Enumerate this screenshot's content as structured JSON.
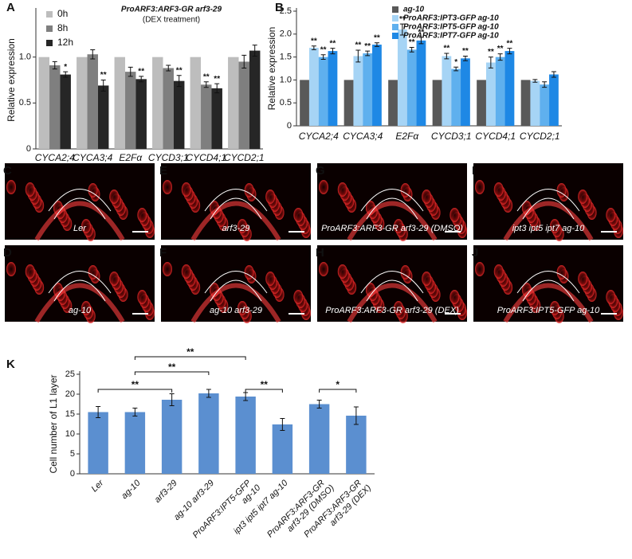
{
  "chart_data": [
    {
      "type": "bar",
      "label": "A",
      "title": "ProARF3:ARF3-GR arf3-29",
      "subtitle": "(DEX treatment)",
      "y_label": "Relative expression",
      "categories": [
        "CYCA2;4",
        "CYCA3;4",
        "E2Fα",
        "CYCD3;1",
        "CYCD4;1",
        "CYCD2;1"
      ],
      "ylim": [
        0,
        1.5
      ],
      "yticks": [
        0,
        0.5,
        {
          "value": 1,
          "label": "1.0"
        }
      ],
      "series": [
        {
          "name": "0h",
          "color": "#bdbdbd",
          "values": [
            1,
            1,
            1,
            1,
            1,
            1
          ]
        },
        {
          "name": "8h",
          "color": "#7f7f7f",
          "values": [
            0.91,
            1.03,
            0.84,
            0.88,
            0.7,
            0.95
          ],
          "errors": [
            0.04,
            0.05,
            0.05,
            0.03,
            0.03,
            0.07
          ],
          "significance": [
            null,
            null,
            null,
            null,
            "**",
            null
          ]
        },
        {
          "name": "12h",
          "color": "#262626",
          "values": [
            0.81,
            0.69,
            0.76,
            0.74,
            0.66,
            1.07
          ],
          "errors": [
            0.03,
            0.06,
            0.03,
            0.06,
            0.05,
            0.06
          ],
          "significance": [
            "*",
            "**",
            "**",
            "**",
            "**",
            null
          ]
        }
      ]
    },
    {
      "type": "bar",
      "label": "B",
      "y_label": "Relative expression",
      "categories": [
        "CYCA2;4",
        "CYCA3;4",
        "E2Fα",
        "CYCD3;1",
        "CYCD4;1",
        "CYCD2;1"
      ],
      "ylim": [
        0,
        2.5
      ],
      "yticks": [
        0,
        0.5,
        {
          "value": 1,
          "label": "1.0"
        },
        1.5,
        {
          "value": 2,
          "label": "2.0"
        },
        2.5
      ],
      "series": [
        {
          "name": "ag-10",
          "color": "#595959",
          "values": [
            1,
            1,
            1,
            1,
            1,
            1
          ]
        },
        {
          "name": "ProARF3:IPT3-GFP ag-10",
          "color": "#a6d4f5",
          "values": [
            1.7,
            1.52,
            2.1,
            1.52,
            1.38,
            0.98
          ],
          "errors": [
            0.04,
            0.13,
            0.12,
            0.06,
            0.12,
            0.03
          ],
          "significance": [
            "**",
            "**",
            "**",
            "**",
            "**",
            null
          ]
        },
        {
          "name": "ProARF3:IPT5-GFP ag-10",
          "color": "#5fb0ee",
          "values": [
            1.5,
            1.58,
            1.66,
            1.24,
            1.5,
            0.9
          ],
          "errors": [
            0.05,
            0.05,
            0.05,
            0.04,
            0.07,
            0.06
          ],
          "significance": [
            "**",
            "**",
            "**",
            "*",
            "**",
            null
          ]
        },
        {
          "name": "ProARF3:IPT7-GFP ag-10",
          "color": "#1e88e5",
          "values": [
            1.63,
            1.77,
            1.86,
            1.47,
            1.63,
            1.12
          ],
          "errors": [
            0.06,
            0.04,
            0.07,
            0.05,
            0.06,
            0.06
          ],
          "significance": [
            "**",
            "**",
            "**",
            "**",
            "**",
            null
          ]
        }
      ]
    },
    {
      "type": "bar",
      "label": "K",
      "y_label": "Cell number of L1 layer",
      "categories": [
        [
          "Ler"
        ],
        [
          "ag-10"
        ],
        [
          "arf3-29"
        ],
        [
          "ag-10 arf3-29"
        ],
        [
          "ProARF3:IPT5-GFP",
          "ag-10"
        ],
        [
          "ipt3 ipt5 ipt7 ag-10"
        ],
        [
          "ProARF3:ARF3-GR",
          "arf3-29 (DMSO)"
        ],
        [
          "ProARF3:ARF3-GR",
          "arf3-29 (DEX)"
        ]
      ],
      "ylim": [
        0,
        25
      ],
      "yticks": [
        0,
        5,
        10,
        15,
        20,
        25
      ],
      "color": "#5b8fd0",
      "values": [
        15.5,
        15.5,
        18.6,
        20.2,
        19.4,
        12.4,
        17.5,
        14.6
      ],
      "errors": [
        1.4,
        1.0,
        1.5,
        1.0,
        1.0,
        1.5,
        1.0,
        2.2
      ],
      "brackets": [
        {
          "between": [
            0,
            2
          ],
          "label": "**"
        },
        {
          "between": [
            1,
            3
          ],
          "label": "**"
        },
        {
          "between": [
            1,
            4
          ],
          "label": "**"
        },
        {
          "between": [
            4,
            5
          ],
          "label": "**"
        },
        {
          "between": [
            6,
            7
          ],
          "label": "*"
        }
      ]
    }
  ],
  "panels": [
    {
      "letter": "C",
      "label": "Ler"
    },
    {
      "letter": "D",
      "label": "ag-10"
    },
    {
      "letter": "E",
      "label": "arf3-29"
    },
    {
      "letter": "F",
      "label": "ag-10 arf3-29"
    },
    {
      "letter": "G",
      "label": "ProARF3:ARF3-GR arf3-29 (DMSO)"
    },
    {
      "letter": "H",
      "label": "ProARF3:ARF3-GR arf3-29 (DEX)"
    },
    {
      "letter": "I",
      "label": "ipt3 ipt5 ipt7 ag-10"
    },
    {
      "letter": "J",
      "label": "ProARF3:IPT5-GFP ag-10"
    }
  ]
}
